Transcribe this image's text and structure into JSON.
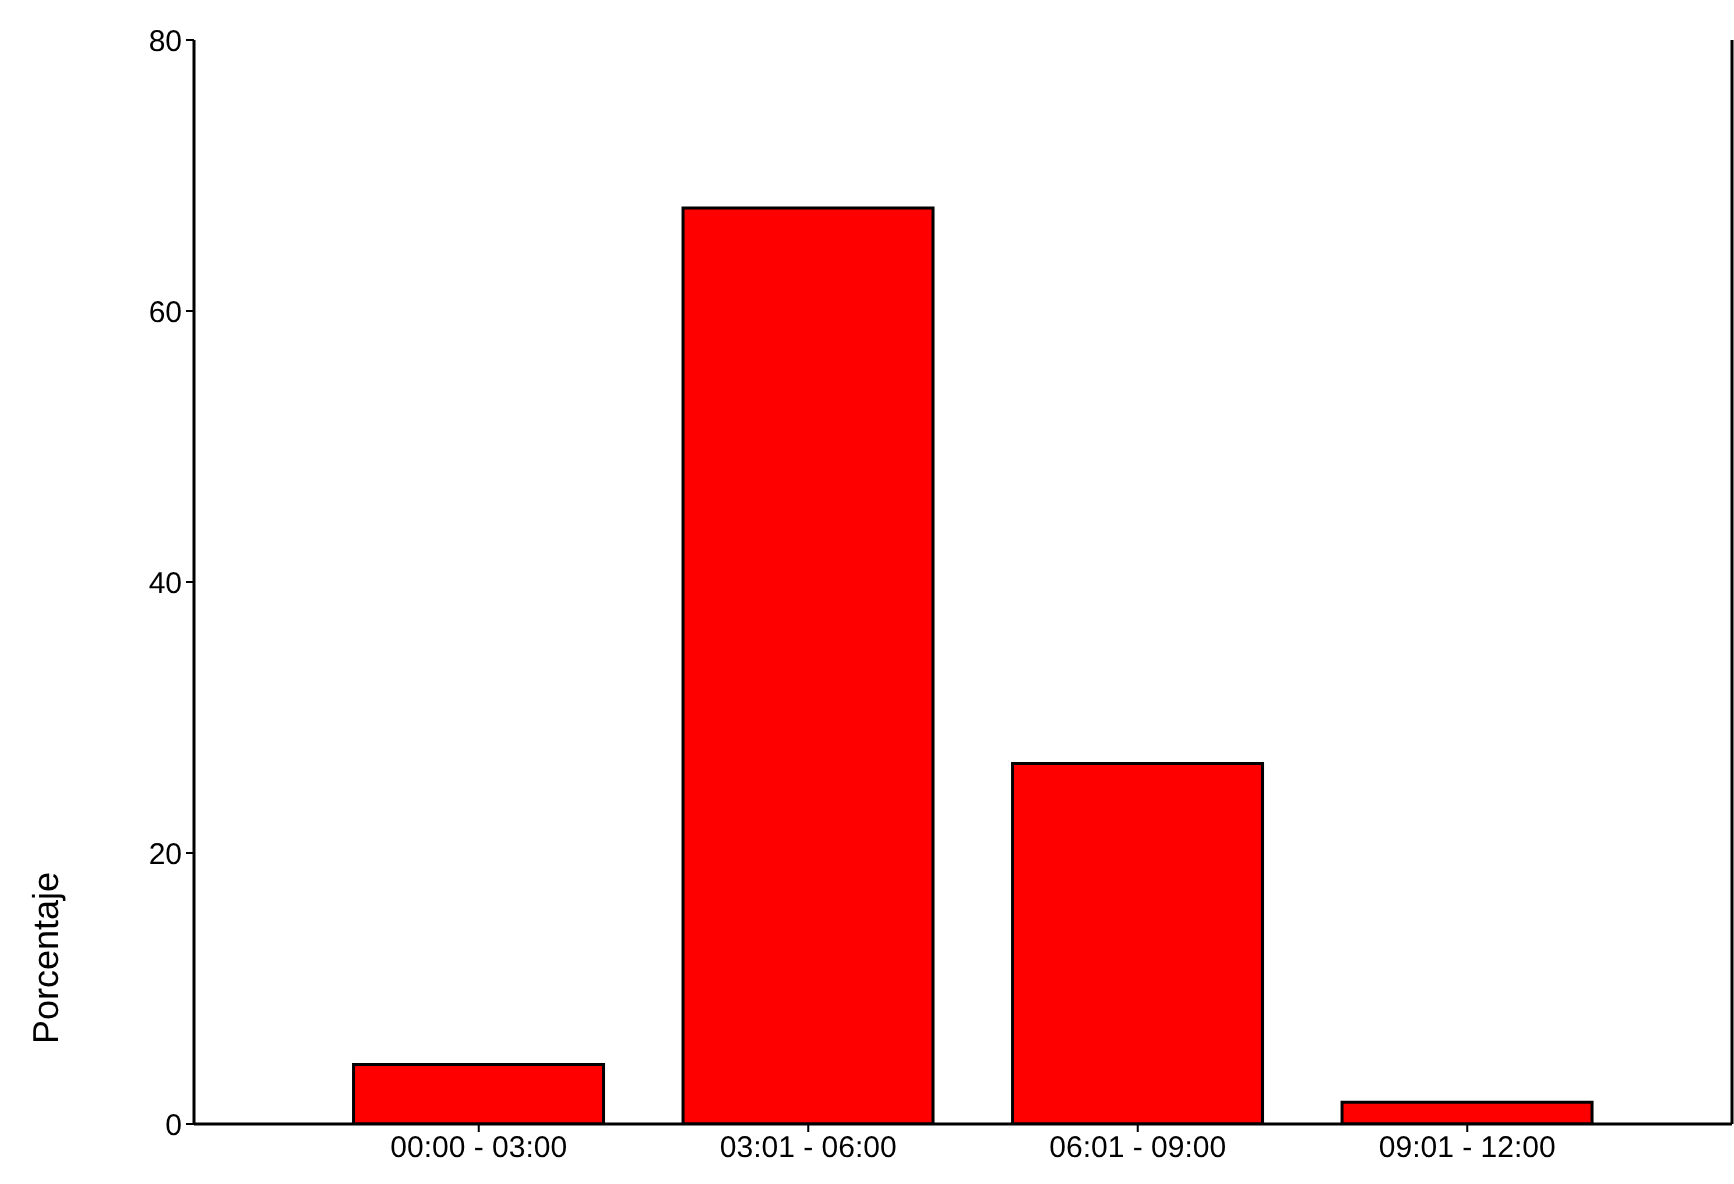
{
  "chart_data": {
    "type": "bar",
    "ylabel": "Porcentaje",
    "categories": [
      "00:00 - 03:00",
      "03:01 - 06:00",
      "06:01 - 09:00",
      "09:01 - 12:00"
    ],
    "values": [
      4.4,
      67.6,
      26.6,
      1.6
    ],
    "color": "#ff0000",
    "ylim": [
      0,
      80
    ],
    "yticks": [
      0,
      20,
      40,
      60,
      80
    ],
    "grid": false,
    "legend": false
  }
}
